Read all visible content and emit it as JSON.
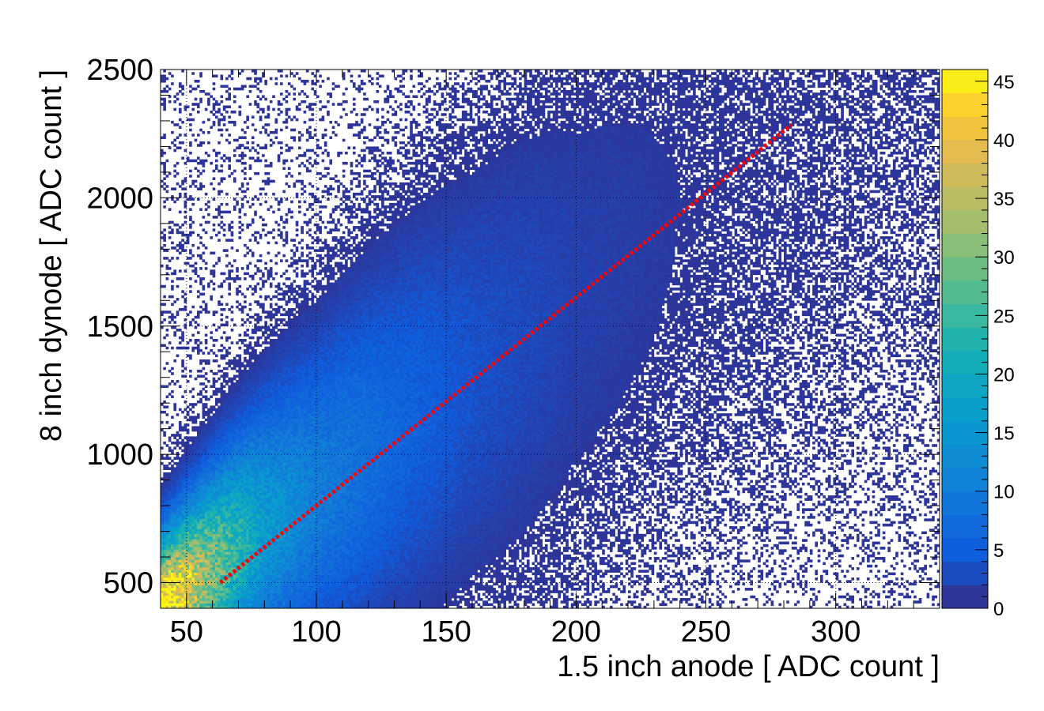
{
  "chart_data": {
    "type": "heatmap",
    "title": "",
    "xlabel": "1.5 inch anode [ ADC count ]",
    "ylabel": "8 inch dynode [ ADC count ]",
    "xlim": [
      40,
      340
    ],
    "ylim": [
      400,
      2500
    ],
    "zlim": [
      0,
      46
    ],
    "x_ticks": [
      50,
      100,
      150,
      200,
      250,
      300
    ],
    "y_ticks": [
      500,
      1000,
      1500,
      2000,
      2500
    ],
    "z_ticks": [
      0,
      5,
      10,
      15,
      20,
      25,
      30,
      35,
      40,
      45
    ],
    "grid": true,
    "colormap": "parula",
    "fit_line": {
      "color": "#ff0000",
      "style": "dotted",
      "x": [
        63,
        283
      ],
      "y": [
        500,
        2285
      ]
    },
    "density_ridge": {
      "x": [
        42,
        60,
        80,
        100,
        130,
        160,
        200,
        240,
        280
      ],
      "y": [
        420,
        560,
        720,
        850,
        1080,
        1300,
        1600,
        1900,
        2200
      ],
      "peak_counts": [
        46,
        30,
        16,
        10,
        6,
        3.5,
        2,
        1.3,
        1
      ]
    }
  }
}
